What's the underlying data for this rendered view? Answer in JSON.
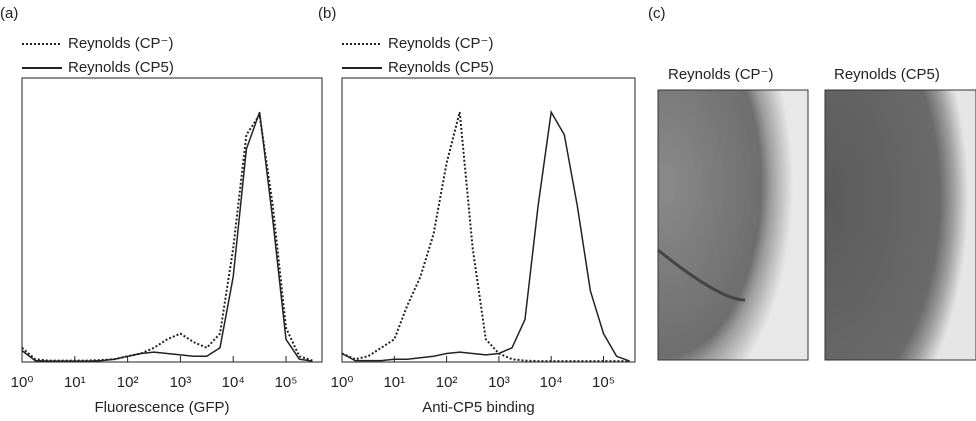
{
  "chart_data": [
    {
      "type": "line",
      "panel_label": "(a)",
      "x_label": "Fluorescence (GFP)",
      "xscale": "log",
      "x": [
        1,
        1.78,
        3.16,
        5.62,
        10,
        17.8,
        31.6,
        56.2,
        100,
        178,
        316,
        562,
        1000,
        1780,
        3160,
        5620,
        10000,
        17800,
        31600,
        56200,
        100000,
        178000,
        316000
      ],
      "xlim": [
        1,
        480000
      ],
      "ylim": [
        0,
        100
      ],
      "xticks": [
        {
          "value": 1,
          "label": "10⁰"
        },
        {
          "value": 10,
          "label": "10¹"
        },
        {
          "value": 100,
          "label": "10²"
        },
        {
          "value": 1000,
          "label": "10³"
        },
        {
          "value": 10000,
          "label": "10⁴"
        },
        {
          "value": 100000,
          "label": "10⁵"
        }
      ],
      "series": [
        {
          "name": "Reynolds (CP⁻)",
          "color": "#222222",
          "dash": "dotted",
          "values": [
            5,
            1,
            0.5,
            0.5,
            0.5,
            0.5,
            0.7,
            1,
            2,
            3,
            5,
            8,
            10,
            7,
            5,
            10,
            40,
            80,
            87,
            55,
            12,
            2,
            0.5
          ]
        },
        {
          "name": "Reynolds (CP5)",
          "color": "#222222",
          "dash": "solid",
          "values": [
            4,
            0.5,
            0.3,
            0.3,
            0.3,
            0.3,
            0.5,
            1,
            2,
            3,
            3.5,
            3,
            2.5,
            2,
            2,
            5,
            30,
            75,
            88,
            50,
            8,
            1,
            0.3
          ]
        }
      ]
    },
    {
      "type": "line",
      "panel_label": "(b)",
      "x_label": "Anti-CP5 binding",
      "xscale": "log",
      "x": [
        1,
        1.78,
        3.16,
        5.62,
        10,
        17.8,
        31.6,
        56.2,
        100,
        178,
        316,
        562,
        1000,
        1780,
        3160,
        5620,
        10000,
        17800,
        31600,
        56200,
        100000,
        178000,
        316000
      ],
      "xlim": [
        1,
        400000
      ],
      "ylim": [
        0,
        100
      ],
      "xticks": [
        {
          "value": 1,
          "label": "10⁰"
        },
        {
          "value": 10,
          "label": "10¹"
        },
        {
          "value": 100,
          "label": "10²"
        },
        {
          "value": 1000,
          "label": "10³"
        },
        {
          "value": 10000,
          "label": "10⁴"
        },
        {
          "value": 100000,
          "label": "10⁵"
        }
      ],
      "series": [
        {
          "name": "Reynolds (CP⁻)",
          "color": "#222222",
          "dash": "dotted",
          "values": [
            3,
            1,
            2,
            5,
            8,
            20,
            30,
            45,
            70,
            88,
            40,
            8,
            3,
            1,
            0.5,
            0.3,
            0.3,
            0.3,
            0.3,
            0.3,
            0.3,
            0.3,
            0.3
          ]
        },
        {
          "name": "Reynolds (CP5)",
          "color": "#222222",
          "dash": "solid",
          "values": [
            3,
            0.5,
            0.5,
            0.5,
            1,
            1,
            1.5,
            2,
            3,
            3.5,
            3,
            2.5,
            3,
            5,
            15,
            55,
            88,
            80,
            55,
            25,
            10,
            2,
            0.3
          ]
        }
      ]
    }
  ],
  "panel_c": {
    "panel_label": "(c)",
    "images": [
      {
        "title": "Reynolds (CP⁻)"
      },
      {
        "title": "Reynolds (CP5)"
      }
    ]
  }
}
